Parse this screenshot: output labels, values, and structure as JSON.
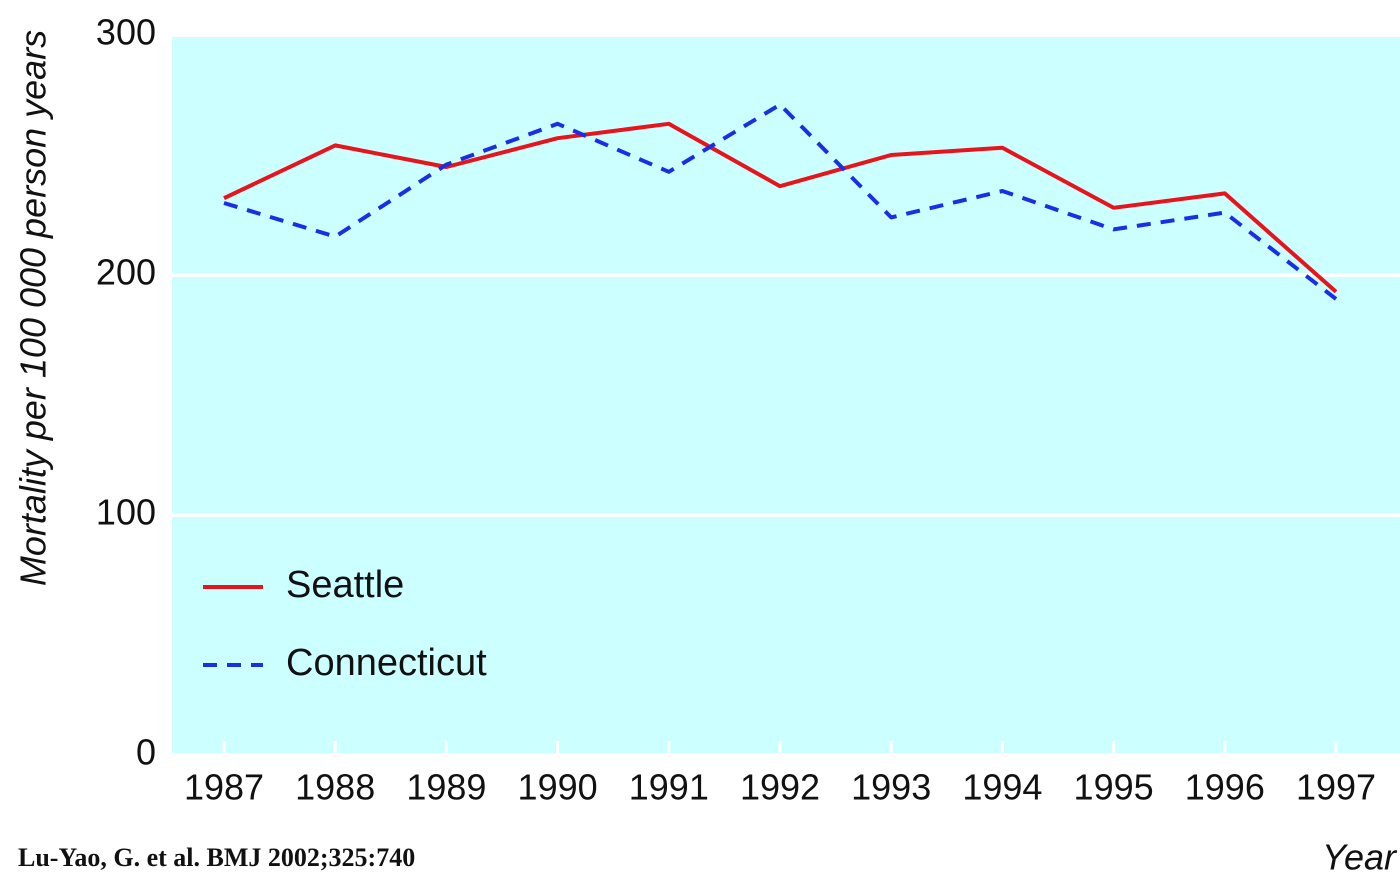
{
  "chart_data": {
    "type": "line",
    "y_label": "Mortality per 100 000 person years",
    "x_label": "Year",
    "source": "Lu-Yao, G. et al. BMJ 2002;325:740",
    "categories": [
      "1987",
      "1988",
      "1989",
      "1990",
      "1991",
      "1992",
      "1993",
      "1994",
      "1995",
      "1996",
      "1997"
    ],
    "series": [
      {
        "name": "Seattle",
        "color": "#e8141c",
        "dash": false,
        "values": [
          232,
          254,
          245,
          257,
          263,
          237,
          250,
          253,
          228,
          234,
          193
        ]
      },
      {
        "name": "Connecticut",
        "color": "#1a2ee6",
        "dash": true,
        "values": [
          230,
          216,
          246,
          263,
          243,
          271,
          224,
          235,
          219,
          226,
          190
        ]
      }
    ],
    "ylim": [
      0,
      300
    ],
    "yticks": [
      0,
      100,
      200,
      300
    ],
    "grid": true,
    "background": "#ccffff",
    "legend": "lower left"
  }
}
